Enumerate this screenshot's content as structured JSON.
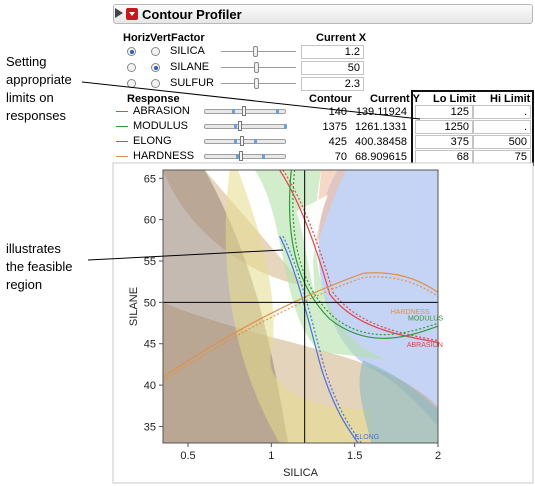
{
  "callouts": {
    "limits": "Setting\nappropriate\nlimits on\nresponses",
    "feasible": "illustrates\nthe feasible\nregion"
  },
  "profiler": {
    "title": "Contour Profiler",
    "factor_headers": {
      "horiz": "Horiz",
      "vert": "Vert",
      "factor": "Factor",
      "current_x": "Current X"
    },
    "factors": [
      {
        "name": "SILICA",
        "horiz": true,
        "vert": false,
        "current_x": "1.2",
        "slider": 0.45
      },
      {
        "name": "SILANE",
        "horiz": false,
        "vert": true,
        "current_x": "50",
        "slider": 0.47
      },
      {
        "name": "SULFUR",
        "horiz": false,
        "vert": false,
        "current_x": "2.3",
        "slider": 0.47
      }
    ],
    "response_headers": {
      "response": "Response",
      "contour": "Contour",
      "current_y": "Current Y",
      "lo_limit": "Lo Limit",
      "hi_limit": "Hi Limit"
    },
    "responses": [
      {
        "name": "ABRASION",
        "color": "#e0474c",
        "contour": "140",
        "current_y": "139.11924",
        "lo_limit": "125",
        "hi_limit": "."
      },
      {
        "name": "MODULUS",
        "color": "#2d9a3a",
        "contour": "1375",
        "current_y": "1261.1331",
        "lo_limit": "1250",
        "hi_limit": "."
      },
      {
        "name": "ELONG",
        "color": "#4a72d8",
        "contour": "425",
        "current_y": "400.38458",
        "lo_limit": "375",
        "hi_limit": "500"
      },
      {
        "name": "HARDNESS",
        "color": "#e0914a",
        "contour": "70",
        "current_y": "68.909615",
        "lo_limit": "68",
        "hi_limit": "75"
      }
    ]
  },
  "chart_data": {
    "type": "contour",
    "xlabel": "SILICA",
    "ylabel": "SILANE",
    "xlim": [
      0.35,
      2.0
    ],
    "ylim": [
      33,
      66
    ],
    "xticks": [
      0.5,
      1,
      1.5,
      2
    ],
    "yticks": [
      35,
      40,
      45,
      50,
      55,
      60,
      65
    ],
    "crosshair": {
      "x": 1.2,
      "y": 50
    },
    "contour_labels": [
      {
        "text": "HARDNESS",
        "color": "#e0914a"
      },
      {
        "text": "MODULUS",
        "color": "#2d9a3a"
      },
      {
        "text": "ABRASION",
        "color": "#e0474c"
      },
      {
        "text": "ELONG",
        "color": "#4a72d8"
      }
    ]
  }
}
